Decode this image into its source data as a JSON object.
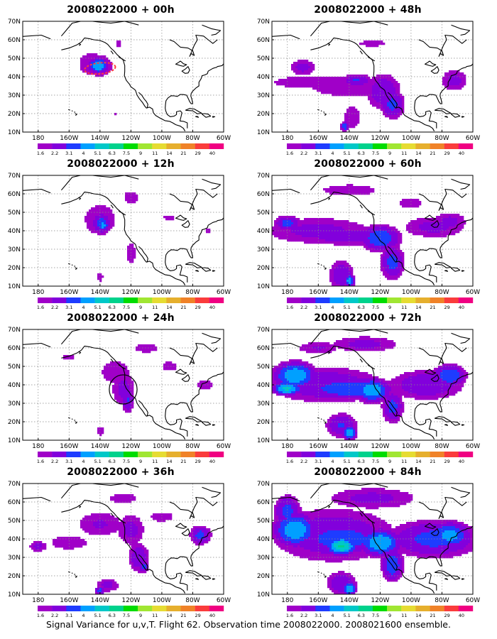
{
  "figure": {
    "caption": "Signal Variance for u,v,T. Flight 62. Observation time 2008022000. 2008021600 ensemble."
  },
  "colors": {
    "levels": [
      "1.6",
      "2.2",
      "3.1",
      "4",
      "5.1",
      "6.3",
      "7.5",
      "9",
      "11",
      "14",
      "21",
      "29",
      "40"
    ],
    "palette": [
      "#a000c8",
      "#8200dc",
      "#1e3cff",
      "#00a0ff",
      "#00c8c8",
      "#00d28c",
      "#00dc00",
      "#a0e632",
      "#e6dc32",
      "#e6af2d",
      "#f08228",
      "#fa3c3c",
      "#f00082"
    ],
    "land_outline": "#000000",
    "grid": "#888888"
  },
  "chart_data": {
    "type": "heatmap",
    "variable": "Signal Variance for u,v,T",
    "x_ticks": [
      "180",
      "160W",
      "140W",
      "120W",
      "100W",
      "80W",
      "60W"
    ],
    "y_ticks": [
      "10N",
      "20N",
      "30N",
      "40N",
      "50N",
      "60N",
      "70N"
    ],
    "xlim": [
      -190,
      -60
    ],
    "ylim": [
      10,
      70
    ],
    "panels": [
      {
        "title": "2008022000 + 00h",
        "blobs": [
          [
            -145,
            47,
            15,
            10,
            2.2
          ],
          [
            -141,
            46,
            11,
            7,
            3.1
          ],
          [
            -141,
            46,
            7,
            4.5,
            5.1
          ],
          [
            -130,
            20,
            5,
            3,
            1.7
          ],
          [
            -128,
            58,
            7,
            7,
            1.7
          ]
        ],
        "marker": {
          "type": "dashed-ellipse",
          "lon": -140,
          "lat": 44.5,
          "rx": 10,
          "ry": 3
        }
      },
      {
        "title": "2008022000 + 48h",
        "blobs": [
          [
            -160,
            37,
            50,
            6,
            2.2
          ],
          [
            -140,
            33,
            38,
            6,
            2.2
          ],
          [
            -118,
            32,
            14,
            12,
            3
          ],
          [
            -112,
            25,
            9,
            9,
            3.5
          ],
          [
            -138,
            18,
            9,
            10,
            2.2
          ],
          [
            -143,
            13,
            3,
            3,
            4
          ],
          [
            -125,
            58,
            35,
            6,
            1.7
          ],
          [
            -170,
            45,
            12,
            6,
            2.5
          ],
          [
            -72,
            38,
            12,
            8,
            2.5
          ],
          [
            -135,
            38,
            12,
            4,
            3.2
          ]
        ]
      },
      {
        "title": "2008022000 + 12h",
        "blobs": [
          [
            -140,
            46,
            17,
            14,
            2.2
          ],
          [
            -139,
            44,
            8,
            7,
            3.5
          ],
          [
            -138,
            43,
            4,
            4,
            4.5
          ],
          [
            -120,
            58,
            9,
            7,
            2
          ],
          [
            -120,
            28,
            6,
            12,
            2
          ],
          [
            -140,
            15,
            5,
            7,
            1.8
          ],
          [
            -95,
            47,
            15,
            5,
            1.7
          ],
          [
            -70,
            40,
            6,
            4,
            1.7
          ]
        ]
      },
      {
        "title": "2008022000 + 60h",
        "blobs": [
          [
            -160,
            40,
            48,
            10,
            2.5
          ],
          [
            -140,
            37,
            38,
            6,
            3
          ],
          [
            -120,
            36,
            15,
            8,
            4
          ],
          [
            -112,
            23,
            9,
            11,
            3.5
          ],
          [
            -145,
            16,
            10,
            10,
            3
          ],
          [
            -140,
            13,
            4,
            4,
            4.5
          ],
          [
            -85,
            42,
            28,
            8,
            2.5
          ],
          [
            -75,
            45,
            15,
            7,
            2.5
          ],
          [
            -140,
            62,
            35,
            6,
            2
          ],
          [
            -180,
            44,
            10,
            5,
            3.5
          ],
          [
            -100,
            55,
            15,
            6,
            2
          ]
        ]
      },
      {
        "title": "2008022000 + 24h",
        "blobs": [
          [
            -130,
            47,
            15,
            10,
            2.2
          ],
          [
            -125,
            38,
            10,
            13,
            2.5
          ],
          [
            -122,
            32,
            5,
            9,
            3.2
          ],
          [
            -140,
            15,
            4,
            4,
            2.2
          ],
          [
            -110,
            60,
            15,
            5,
            2
          ],
          [
            -95,
            50,
            10,
            5,
            2
          ],
          [
            -160,
            55,
            10,
            5,
            1.8
          ],
          [
            -72,
            40,
            10,
            6,
            2
          ]
        ],
        "marker": {
          "type": "circle",
          "lon": -125,
          "lat": 37.5,
          "rx": 9,
          "ry": 9
        }
      },
      {
        "title": "2008022000 + 72h",
        "blobs": [
          [
            -155,
            40,
            45,
            12,
            3
          ],
          [
            -175,
            45,
            15,
            8,
            5
          ],
          [
            -140,
            38,
            35,
            7,
            4
          ],
          [
            -125,
            37,
            12,
            7,
            5
          ],
          [
            -112,
            28,
            8,
            10,
            3.5
          ],
          [
            -145,
            18,
            12,
            8,
            3.2
          ],
          [
            -140,
            14,
            5,
            4,
            5
          ],
          [
            -90,
            40,
            30,
            10,
            3
          ],
          [
            -75,
            45,
            12,
            7,
            4
          ],
          [
            -130,
            62,
            30,
            6,
            2.5
          ],
          [
            -160,
            60,
            20,
            5,
            2.3
          ],
          [
            -180,
            38,
            10,
            4,
            5.5
          ]
        ]
      },
      {
        "title": "2008022000 + 36h",
        "blobs": [
          [
            -140,
            48,
            22,
            10,
            2.3
          ],
          [
            -120,
            45,
            12,
            12,
            2.5
          ],
          [
            -115,
            30,
            8,
            10,
            3
          ],
          [
            -112,
            25,
            4,
            4,
            3.5
          ],
          [
            -135,
            15,
            10,
            5,
            2.5
          ],
          [
            -140,
            12,
            4,
            3,
            3.5
          ],
          [
            -100,
            52,
            15,
            5,
            2
          ],
          [
            -75,
            42,
            8,
            6,
            3.5
          ],
          [
            -160,
            38,
            20,
            6,
            2.2
          ],
          [
            -180,
            36,
            8,
            4,
            2.5
          ],
          [
            -125,
            62,
            18,
            5,
            2
          ]
        ]
      },
      {
        "title": "2008022000 + 84h",
        "blobs": [
          [
            -150,
            42,
            50,
            18,
            3
          ],
          [
            -175,
            45,
            15,
            10,
            5
          ],
          [
            -145,
            40,
            30,
            10,
            4
          ],
          [
            -145,
            36,
            10,
            5,
            6.5
          ],
          [
            -120,
            38,
            15,
            8,
            5
          ],
          [
            -112,
            26,
            8,
            10,
            4
          ],
          [
            -145,
            16,
            12,
            8,
            3
          ],
          [
            -140,
            13,
            5,
            4,
            5
          ],
          [
            -85,
            40,
            35,
            12,
            3.5
          ],
          [
            -75,
            42,
            15,
            8,
            4.5
          ],
          [
            -125,
            62,
            40,
            8,
            2.5
          ],
          [
            -180,
            55,
            10,
            10,
            3.5
          ]
        ]
      }
    ]
  }
}
